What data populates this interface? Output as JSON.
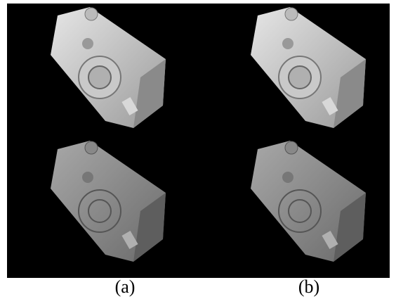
{
  "captions": [
    "(a)",
    "(b)"
  ]
}
